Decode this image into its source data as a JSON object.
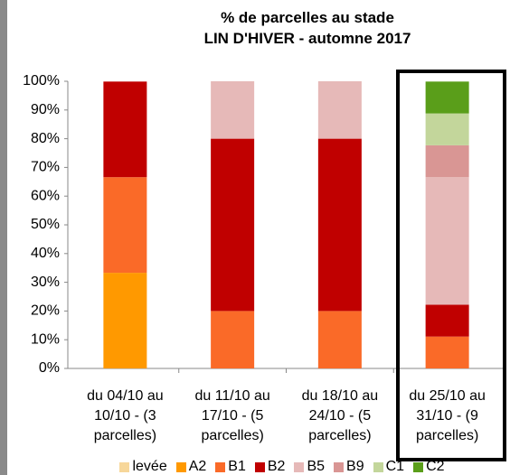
{
  "chart_data": {
    "type": "stacked_bar",
    "title": [
      "% de parcelles au stade",
      "LIN D'HIVER - automne 2017"
    ],
    "categories": [
      "du 04/10 au 10/10 - (3 parcelles)",
      "du 11/10 au 17/10 - (5 parcelles)",
      "du 18/10 au 24/10 - (5 parcelles)",
      "du 25/10 au 31/10 - (9 parcelles)"
    ],
    "series": [
      {
        "name": "levée",
        "color": "#f7d79a",
        "values": [
          0,
          0,
          0,
          0
        ]
      },
      {
        "name": "A2",
        "color": "#ff9900",
        "values": [
          33.3,
          0,
          0,
          0
        ]
      },
      {
        "name": "B1",
        "color": "#fa6a28",
        "values": [
          33.3,
          20,
          20,
          11.1
        ]
      },
      {
        "name": "B2",
        "color": "#c00000",
        "values": [
          33.3,
          60,
          60,
          11.1
        ]
      },
      {
        "name": "B5",
        "color": "#e6b9b8",
        "values": [
          0,
          20,
          20,
          44.4
        ]
      },
      {
        "name": "B9",
        "color": "#d99694",
        "values": [
          0,
          0,
          0,
          11.1
        ]
      },
      {
        "name": "C1",
        "color": "#c3d69b",
        "values": [
          0,
          0,
          0,
          11.1
        ]
      },
      {
        "name": "C2",
        "color": "#5a9e1a",
        "values": [
          0,
          0,
          0,
          11.1
        ]
      }
    ],
    "ylim": [
      0,
      100
    ],
    "yticks": [
      {
        "value": 0,
        "label": "0%"
      },
      {
        "value": 10,
        "label": "10%"
      },
      {
        "value": 20,
        "label": "20%"
      },
      {
        "value": 30,
        "label": "30%"
      },
      {
        "value": 40,
        "label": "40%"
      },
      {
        "value": 50,
        "label": "50%"
      },
      {
        "value": 60,
        "label": "60%"
      },
      {
        "value": 70,
        "label": "70%"
      },
      {
        "value": 80,
        "label": "80%"
      },
      {
        "value": 90,
        "label": "90%"
      },
      {
        "value": 100,
        "label": "100%"
      }
    ],
    "grid": false
  }
}
